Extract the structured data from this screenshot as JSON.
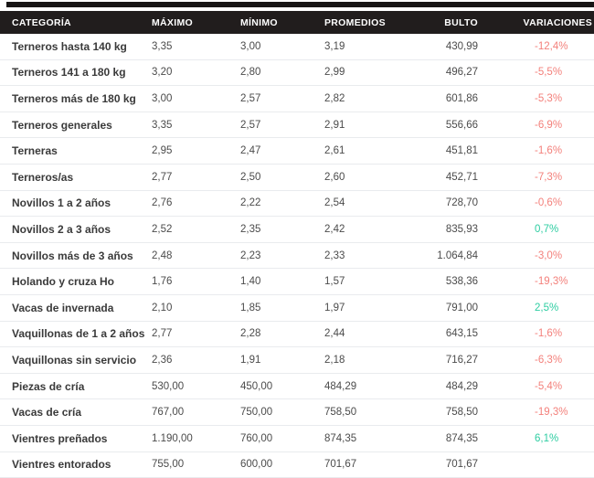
{
  "chart_data": {
    "type": "table",
    "columns": [
      "CATEGORÍA",
      "MÁXIMO",
      "MÍNIMO",
      "PROMEDIOS",
      "BULTO",
      "VARIACIONES"
    ],
    "rows": [
      {
        "categoria": "Terneros hasta 140 kg",
        "maximo": "3,35",
        "minimo": "3,00",
        "promedios": "3,19",
        "bulto": "430,99",
        "variacion": "-12,4%"
      },
      {
        "categoria": "Terneros 141 a 180 kg",
        "maximo": "3,20",
        "minimo": "2,80",
        "promedios": "2,99",
        "bulto": "496,27",
        "variacion": "-5,5%"
      },
      {
        "categoria": "Terneros más de 180 kg",
        "maximo": "3,00",
        "minimo": "2,57",
        "promedios": "2,82",
        "bulto": "601,86",
        "variacion": "-5,3%"
      },
      {
        "categoria": "Terneros generales",
        "maximo": "3,35",
        "minimo": "2,57",
        "promedios": "2,91",
        "bulto": "556,66",
        "variacion": "-6,9%"
      },
      {
        "categoria": "Terneras",
        "maximo": "2,95",
        "minimo": "2,47",
        "promedios": "2,61",
        "bulto": "451,81",
        "variacion": "-1,6%"
      },
      {
        "categoria": "Terneros/as",
        "maximo": "2,77",
        "minimo": "2,50",
        "promedios": "2,60",
        "bulto": "452,71",
        "variacion": "-7,3%"
      },
      {
        "categoria": "Novillos 1 a 2 años",
        "maximo": "2,76",
        "minimo": "2,22",
        "promedios": "2,54",
        "bulto": "728,70",
        "variacion": "-0,6%"
      },
      {
        "categoria": "Novillos 2 a 3 años",
        "maximo": "2,52",
        "minimo": "2,35",
        "promedios": "2,42",
        "bulto": "835,93",
        "variacion": "0,7%"
      },
      {
        "categoria": "Novillos más de 3 años",
        "maximo": "2,48",
        "minimo": "2,23",
        "promedios": "2,33",
        "bulto": "1.064,84",
        "variacion": "-3,0%"
      },
      {
        "categoria": "Holando y cruza Ho",
        "maximo": "1,76",
        "minimo": "1,40",
        "promedios": "1,57",
        "bulto": "538,36",
        "variacion": "-19,3%"
      },
      {
        "categoria": "Vacas de invernada",
        "maximo": "2,10",
        "minimo": "1,85",
        "promedios": "1,97",
        "bulto": "791,00",
        "variacion": "2,5%"
      },
      {
        "categoria": "Vaquillonas de 1 a 2 años",
        "maximo": "2,77",
        "minimo": "2,28",
        "promedios": "2,44",
        "bulto": "643,15",
        "variacion": "-1,6%"
      },
      {
        "categoria": "Vaquillonas sin servicio",
        "maximo": "2,36",
        "minimo": "1,91",
        "promedios": "2,18",
        "bulto": "716,27",
        "variacion": "-6,3%"
      },
      {
        "categoria": "Piezas de cría",
        "maximo": "530,00",
        "minimo": "450,00",
        "promedios": "484,29",
        "bulto": "484,29",
        "variacion": "-5,4%"
      },
      {
        "categoria": "Vacas de cría",
        "maximo": "767,00",
        "minimo": "750,00",
        "promedios": "758,50",
        "bulto": "758,50",
        "variacion": "-19,3%"
      },
      {
        "categoria": "Vientres preñados",
        "maximo": "1.190,00",
        "minimo": "760,00",
        "promedios": "874,35",
        "bulto": "874,35",
        "variacion": "6,1%"
      },
      {
        "categoria": "Vientres entorados",
        "maximo": "755,00",
        "minimo": "600,00",
        "promedios": "701,67",
        "bulto": "701,67",
        "variacion": ""
      }
    ]
  },
  "colors": {
    "negative": "#f3807b",
    "positive": "#2ecda2",
    "header_bg": "#211d1d",
    "header_text": "#ffffff",
    "row_divider": "#e9ebee",
    "category_text": "#3a3a3a",
    "value_text": "#4b4b4b",
    "top_strip": "#171414"
  }
}
